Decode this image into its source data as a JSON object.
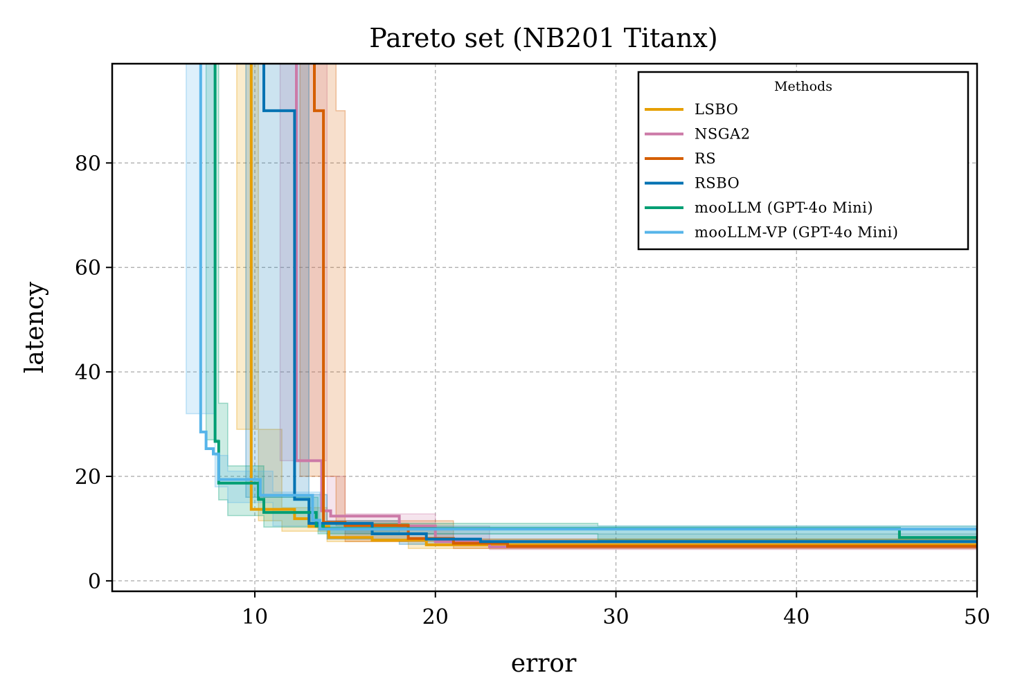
{
  "chart_data": {
    "type": "line",
    "step": true,
    "title": "Pareto set (NB201 Titanx)",
    "xlabel": "error",
    "ylabel": "latency",
    "xlim": [
      2.1,
      50
    ],
    "ylim": [
      -2,
      99
    ],
    "xticks": [
      10,
      20,
      30,
      40,
      50
    ],
    "yticks": [
      0,
      20,
      40,
      60,
      80
    ],
    "grid": true,
    "legend": {
      "title": "Methods",
      "position": "top-right"
    },
    "series": [
      {
        "name": "LSBO",
        "color": "#E69F00",
        "x": [
          9.8,
          9.8,
          10.2,
          12.2,
          12.2,
          13.0,
          13.0,
          14.1,
          14.1,
          16.5,
          16.5,
          19.5,
          19.5,
          50
        ],
        "y": [
          99,
          13.7,
          13.7,
          13.7,
          11.9,
          11.9,
          10.4,
          10.4,
          8.3,
          8.3,
          7.8,
          7.8,
          6.9,
          6.9
        ],
        "band": {
          "x": [
            9.0,
            10.2,
            10.2,
            11.5,
            11.5,
            14.0,
            14.0,
            18.5,
            18.5,
            50
          ],
          "upper": [
            99,
            99,
            29,
            29,
            14,
            14,
            11,
            11,
            8,
            8
          ],
          "lower": [
            29,
            29,
            11.5,
            11.5,
            9.5,
            9.5,
            7.5,
            7.5,
            6.2,
            6.2
          ]
        }
      },
      {
        "name": "NSGA2",
        "color": "#CC79A7",
        "x": [
          12.3,
          12.3,
          13.7,
          13.7,
          14.2,
          14.2,
          16.0,
          16.0,
          18.0,
          18.0,
          20.0,
          20.0,
          23.0,
          23.0,
          50
        ],
        "y": [
          99,
          23.0,
          23.0,
          13.4,
          13.4,
          12.4,
          12.4,
          12.4,
          12.4,
          10.5,
          10.5,
          7.5,
          7.5,
          6.5,
          6.5
        ],
        "band": {
          "x": [
            11.4,
            14.0,
            14.0,
            15.0,
            15.0,
            20.0,
            20.0,
            23.0,
            23.0,
            50
          ],
          "upper": [
            99,
            99,
            20,
            20,
            12.8,
            12.8,
            10.5,
            10.5,
            7,
            7
          ],
          "lower": [
            23,
            23,
            11.5,
            11.5,
            9.0,
            9.0,
            7,
            7,
            6,
            6
          ]
        }
      },
      {
        "name": "RS",
        "color": "#D55E00",
        "x": [
          13.3,
          13.3,
          13.8,
          13.8,
          15.0,
          15.0,
          18.5,
          18.5,
          21.0,
          21.0,
          24.0,
          24.0,
          50
        ],
        "y": [
          99,
          90.0,
          90.0,
          11.2,
          11.2,
          10.6,
          10.6,
          8.1,
          8.1,
          7.2,
          7.2,
          6.6,
          6.6
        ],
        "band": {
          "x": [
            12.5,
            14.5,
            14.5,
            15.0,
            15.0,
            21.0,
            21.0,
            50
          ],
          "upper": [
            99,
            99,
            90,
            90,
            11.5,
            11.5,
            8,
            8
          ],
          "lower": [
            20,
            20,
            10.5,
            10.5,
            7.5,
            7.5,
            6.2,
            6.2
          ]
        }
      },
      {
        "name": "RSBO",
        "color": "#0072B2",
        "x": [
          10.5,
          10.5,
          12.2,
          12.2,
          13.0,
          13.0,
          16.5,
          16.5,
          19.5,
          19.5,
          22.5,
          22.5,
          50
        ],
        "y": [
          99,
          90.0,
          90.0,
          15.6,
          15.6,
          11.0,
          11.0,
          9.0,
          9.0,
          8.0,
          8.0,
          7.5,
          7.5
        ],
        "band": {
          "x": [
            9.5,
            13.0,
            13.0,
            14.0,
            14.0,
            18.0,
            18.0,
            50
          ],
          "upper": [
            99,
            99,
            16.5,
            16.5,
            11.5,
            11.5,
            9,
            9
          ],
          "lower": [
            16,
            16,
            10.5,
            10.5,
            8,
            8,
            7,
            7
          ]
        }
      },
      {
        "name": "mooLLM (GPT-4o Mini)",
        "color": "#009E73",
        "x": [
          7.8,
          7.8,
          8.0,
          8.0,
          10.2,
          10.2,
          10.5,
          10.5,
          11.5,
          11.5,
          13.4,
          13.4,
          13.8,
          13.8,
          45.7,
          45.7,
          50
        ],
        "y": [
          99,
          26.7,
          26.7,
          18.7,
          18.7,
          15.6,
          15.6,
          13.1,
          13.1,
          13.1,
          13.1,
          10.5,
          10.5,
          10.0,
          10.0,
          8.3,
          8.3
        ],
        "band": {
          "x": [
            7.3,
            8.0,
            8.0,
            8.5,
            8.5,
            10.5,
            10.5,
            13.5,
            13.5,
            29.0,
            29.0,
            50
          ],
          "upper": [
            99,
            99,
            34,
            34,
            22,
            22,
            16,
            16,
            11,
            11,
            10.5,
            10.5
          ],
          "lower": [
            27,
            27,
            15.5,
            15.5,
            12.5,
            12.5,
            10.3,
            10.3,
            9.0,
            9.0,
            7.8,
            7.8
          ]
        }
      },
      {
        "name": "mooLLM-VP (GPT-4o Mini)",
        "color": "#56B4E9",
        "x": [
          7.0,
          7.0,
          7.3,
          7.3,
          7.7,
          7.7,
          8.0,
          8.0,
          10.3,
          10.3,
          11.0,
          11.0,
          13.2,
          13.2,
          13.6,
          13.6,
          29.0,
          29.0,
          50
        ],
        "y": [
          99,
          28.5,
          28.5,
          25.3,
          25.3,
          24.3,
          24.3,
          19.4,
          19.4,
          16.4,
          16.4,
          16.4,
          16.4,
          11.6,
          11.6,
          9.9,
          9.9,
          9.9,
          9.9
        ],
        "band": {
          "x": [
            6.2,
            7.8,
            7.8,
            8.5,
            8.5,
            11.0,
            11.0,
            13.6,
            13.6,
            50
          ],
          "upper": [
            99,
            99,
            24,
            24,
            21,
            21,
            17,
            17,
            10.5,
            10.5
          ],
          "lower": [
            32,
            32,
            18,
            18,
            15,
            15,
            10.5,
            10.5,
            9.3,
            9.3
          ]
        }
      }
    ]
  }
}
